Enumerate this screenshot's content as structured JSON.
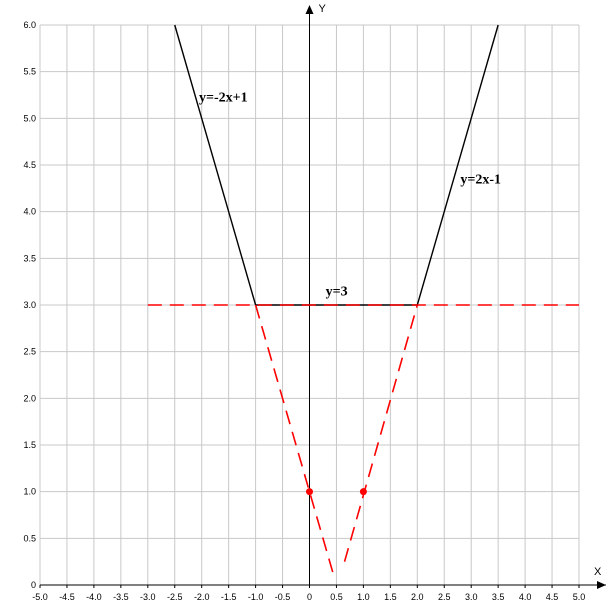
{
  "chart_data": {
    "type": "line",
    "title": "",
    "xlabel": "X",
    "ylabel": "Y",
    "xlim": [
      -5.0,
      5.0
    ],
    "ylim": [
      0,
      6.0
    ],
    "xticks": [
      "-5.0",
      "-4.5",
      "-4.0",
      "-3.5",
      "-3.0",
      "-2.5",
      "-2.0",
      "-1.5",
      "-1.0",
      "-0.5",
      "0",
      "0.5",
      "1.0",
      "1.5",
      "2.0",
      "2.5",
      "3.0",
      "3.5",
      "4.0",
      "4.5",
      "5.0"
    ],
    "yticks": [
      "0",
      "0.5",
      "1.0",
      "1.5",
      "2.0",
      "2.5",
      "3.0",
      "3.5",
      "4.0",
      "4.5",
      "5.0",
      "5.5",
      "6.0"
    ],
    "grid": true,
    "series": [
      {
        "name": "y=-2x+1",
        "style": "solid",
        "color": "#000000",
        "x": [
          -2.5,
          -1.0
        ],
        "y": [
          6.0,
          3.0
        ]
      },
      {
        "name": "y=3",
        "style": "solid",
        "color": "#000000",
        "x": [
          -1.0,
          2.0
        ],
        "y": [
          3.0,
          3.0
        ]
      },
      {
        "name": "y=2x-1",
        "style": "solid",
        "color": "#000000",
        "x": [
          2.0,
          3.5
        ],
        "y": [
          3.0,
          6.0
        ]
      },
      {
        "style": "dashed",
        "color": "#ff0000",
        "x": [
          -3.0,
          5.0
        ],
        "y": [
          3.0,
          3.0
        ]
      },
      {
        "style": "dashed",
        "color": "#ff0000",
        "x": [
          -1.0,
          0.45
        ],
        "y": [
          3.0,
          0.1
        ]
      },
      {
        "style": "dashed",
        "color": "#ff0000",
        "x": [
          0.65,
          2.0
        ],
        "y": [
          0.25,
          3.0
        ]
      }
    ],
    "points": [
      {
        "x": 0,
        "y": 1.0,
        "color": "#ff0000"
      },
      {
        "x": 1.0,
        "y": 1.0,
        "color": "#ff0000"
      }
    ],
    "annotations": [
      {
        "text": "y=-2x+1",
        "x": -2.05,
        "y": 5.18
      },
      {
        "text": "y=2x-1",
        "x": 2.8,
        "y": 4.3
      },
      {
        "text": "y=3",
        "x": 0.3,
        "y": 3.1
      }
    ]
  }
}
